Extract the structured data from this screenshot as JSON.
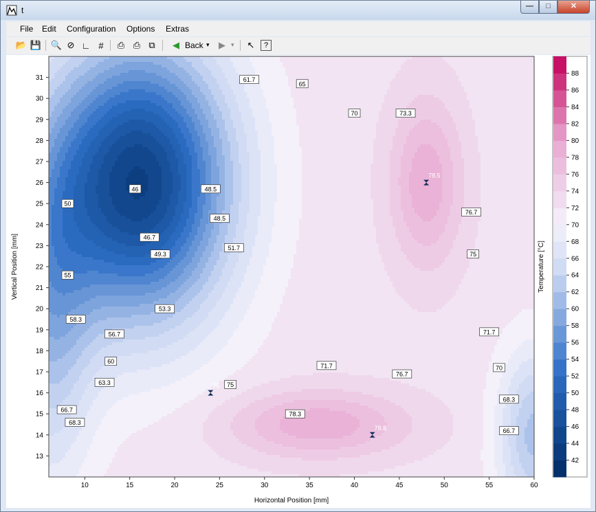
{
  "window": {
    "title": "t"
  },
  "menu": [
    "File",
    "Edit",
    "Configuration",
    "Options",
    "Extras"
  ],
  "toolbar": {
    "back_label": "Back"
  },
  "chart_data": {
    "type": "heatmap",
    "subtype": "contour",
    "xlabel": "Horizontal Position [mm]",
    "ylabel": "Vertical Position [mm]",
    "colorbar_label": "Temperature [°C]",
    "xlim": [
      6,
      60
    ],
    "ylim": [
      12,
      32
    ],
    "x_ticks": [
      10,
      15,
      20,
      25,
      30,
      35,
      40,
      45,
      50,
      55,
      60
    ],
    "y_ticks": [
      13,
      14,
      15,
      16,
      17,
      18,
      19,
      20,
      21,
      22,
      23,
      24,
      25,
      26,
      27,
      28,
      29,
      30,
      31
    ],
    "colorbar_ticks": [
      42,
      44,
      46,
      48,
      50,
      52,
      54,
      56,
      58,
      60,
      62,
      64,
      66,
      68,
      70,
      72,
      74,
      76,
      78,
      80,
      82,
      84,
      86,
      88
    ],
    "colorbar_range": [
      40,
      90
    ],
    "colors": {
      "low": "#002b66",
      "mid": "#f4f2fb",
      "high": "#c2005a"
    },
    "contour_labels": [
      {
        "text": "46",
        "x": 15.6,
        "y": 25.7
      },
      {
        "text": "48.5",
        "x": 24.0,
        "y": 25.7
      },
      {
        "text": "48.5",
        "x": 25.0,
        "y": 24.3
      },
      {
        "text": "50",
        "x": 8.1,
        "y": 25.0
      },
      {
        "text": "46.7",
        "x": 17.2,
        "y": 23.4
      },
      {
        "text": "49.3",
        "x": 18.4,
        "y": 22.6
      },
      {
        "text": "51.7",
        "x": 26.6,
        "y": 22.9
      },
      {
        "text": "55",
        "x": 8.1,
        "y": 21.6
      },
      {
        "text": "53.3",
        "x": 18.9,
        "y": 20.0
      },
      {
        "text": "58.3",
        "x": 9.0,
        "y": 19.5
      },
      {
        "text": "56.7",
        "x": 13.3,
        "y": 18.8
      },
      {
        "text": "60",
        "x": 12.9,
        "y": 17.5
      },
      {
        "text": "63.3",
        "x": 12.2,
        "y": 16.5
      },
      {
        "text": "66.7",
        "x": 8.0,
        "y": 15.2
      },
      {
        "text": "68.3",
        "x": 8.9,
        "y": 14.6
      },
      {
        "text": "61.7",
        "x": 28.3,
        "y": 30.9
      },
      {
        "text": "65",
        "x": 34.2,
        "y": 30.7
      },
      {
        "text": "70",
        "x": 40.0,
        "y": 29.3
      },
      {
        "text": "73.3",
        "x": 45.7,
        "y": 29.3
      },
      {
        "text": "76.7",
        "x": 53.0,
        "y": 24.6
      },
      {
        "text": "75",
        "x": 53.2,
        "y": 22.6
      },
      {
        "text": "71.7",
        "x": 55.0,
        "y": 18.9
      },
      {
        "text": "70",
        "x": 56.1,
        "y": 17.2
      },
      {
        "text": "68.3",
        "x": 57.2,
        "y": 15.7
      },
      {
        "text": "66.7",
        "x": 57.2,
        "y": 14.2
      },
      {
        "text": "71.7",
        "x": 36.9,
        "y": 17.3
      },
      {
        "text": "75",
        "x": 26.2,
        "y": 16.4
      },
      {
        "text": "76.7",
        "x": 45.3,
        "y": 16.9
      },
      {
        "text": "78.3",
        "x": 33.4,
        "y": 15.0
      }
    ],
    "markers": [
      {
        "label": "78.5",
        "x": 48.0,
        "y": 26.0
      },
      {
        "label": "75",
        "x": 24.0,
        "y": 16.0
      },
      {
        "label": "78.8",
        "x": 42.0,
        "y": 14.0
      }
    ]
  }
}
